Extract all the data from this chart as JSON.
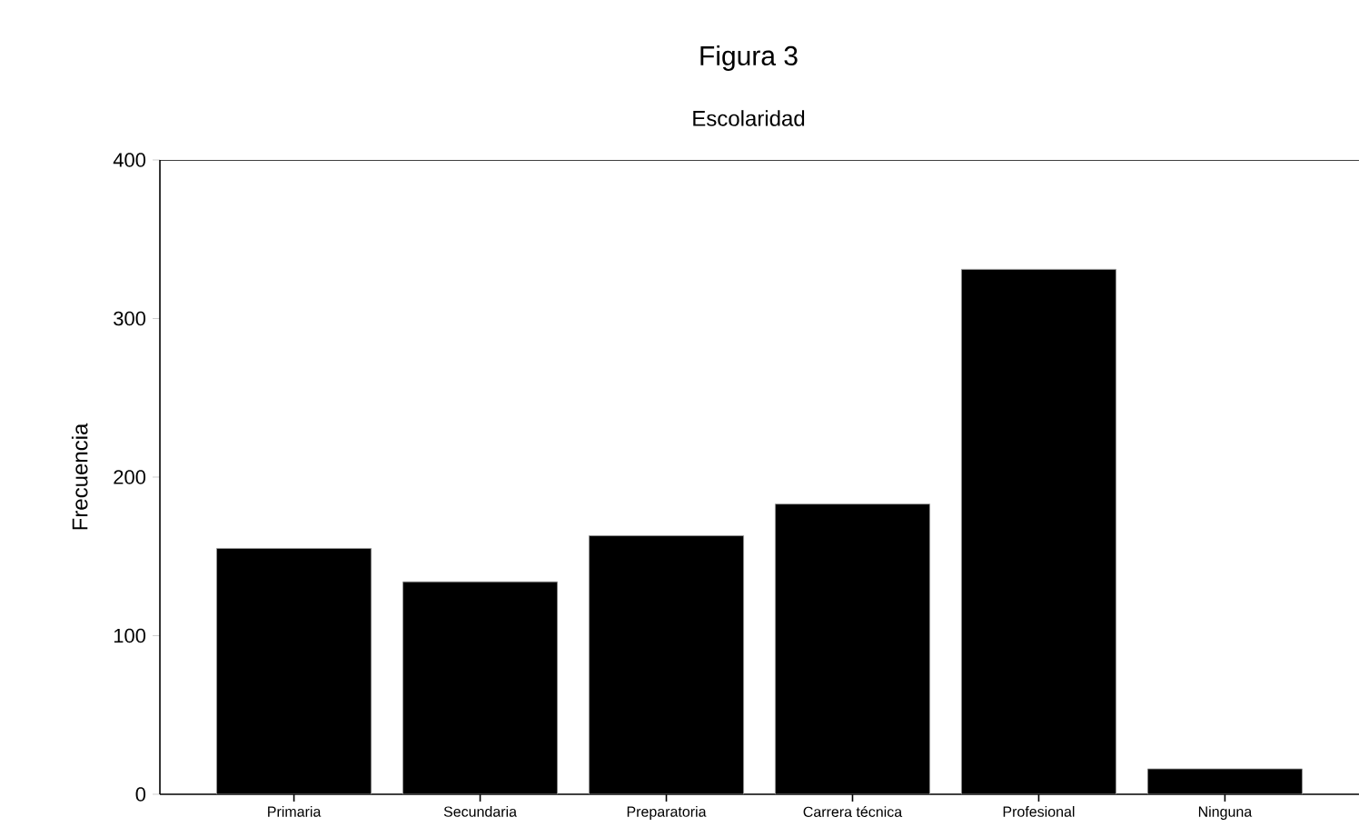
{
  "chart_data": {
    "type": "bar",
    "title": "Figura 3",
    "subtitle": "Escolaridad",
    "ylabel": "Frecuencia",
    "categories": [
      "Primaria",
      "Secundaria",
      "Preparatoria",
      "Carrera técnica",
      "Profesional",
      "Ninguna"
    ],
    "values": [
      155,
      134,
      163,
      183,
      331,
      16
    ],
    "color": "#000000",
    "ylim": [
      0,
      400
    ],
    "yticks": [
      0,
      100,
      200,
      300,
      400
    ],
    "grid": false
  }
}
